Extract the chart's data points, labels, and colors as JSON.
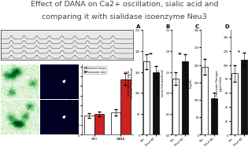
{
  "title_line1": "Effect of DANA on Ca2+ oscillation, sialic acid and",
  "title_line2": "comparing it with sialidase isoenzyme Neu3",
  "title_fontsize": 6.8,
  "title_color": "#444444",
  "background_color": "#ffffff",
  "bar_chart_left": {
    "groups": [
      "VEH",
      "DANA"
    ],
    "bar1_values": [
      100,
      115
    ],
    "bar2_values": [
      105,
      285
    ],
    "bar1_color": "#ffffff",
    "bar2_color": "#cc2222",
    "bar1_edge": "#000000",
    "bar2_edge": "#000000",
    "legend": [
      "Exocrine tissue",
      "Pancreatic islet"
    ],
    "ylabel": "Fluorescence (%)",
    "err1": [
      12,
      15
    ],
    "err2": [
      12,
      30
    ],
    "significance_val": 300,
    "significance": "**",
    "ylim": [
      0,
      360
    ]
  },
  "right_charts": {
    "A": {
      "label": "A",
      "ylabel": "Basal glucose mg/dL\n(in mean Fed and Basal)",
      "groups": [
        "Veh",
        "Neu3 KO"
      ],
      "bar1_value": 175,
      "bar2_value": 150,
      "err1": 18,
      "err2": 14,
      "bar1_color": "#ffffff",
      "bar2_color": "#111111",
      "significance": "**",
      "sig_color": "#000000",
      "ylim": [
        0,
        250
      ]
    },
    "B": {
      "label": "B",
      "ylabel": "Blood Insulin (ng/mL)\n(mean Fed and Basal)",
      "groups": [
        "Veh",
        "Neu3 KO"
      ],
      "bar1_value": 1.35,
      "bar2_value": 1.75,
      "err1": 0.15,
      "err2": 0.18,
      "bar1_color": "#ffffff",
      "bar2_color": "#111111",
      "significance": "**",
      "sig_color": "#000000",
      "ylim": [
        0,
        2.5
      ]
    },
    "C": {
      "label": "C",
      "ylabel": "Fasting Glucose\n(mg/dL)",
      "groups": [
        "Veh",
        "Neu3 KO"
      ],
      "bar1_value": 195,
      "bar2_value": 105,
      "err1": 22,
      "err2": 15,
      "bar1_color": "#ffffff",
      "bar2_color": "#111111",
      "significance": "",
      "sig_color": "#000000",
      "ylim": [
        0,
        300
      ]
    },
    "D": {
      "label": "D",
      "ylabel": "Pancreatic Glucagon\n(pg/mL/islet)",
      "groups": [
        "Veh",
        "Neu3 KO"
      ],
      "bar1_value": 88,
      "bar2_value": 108,
      "err1": 12,
      "err2": 10,
      "bar1_color": "#ffffff",
      "bar2_color": "#111111",
      "significance": "*",
      "sig_color": "#000000",
      "ylim": [
        0,
        150
      ]
    }
  }
}
